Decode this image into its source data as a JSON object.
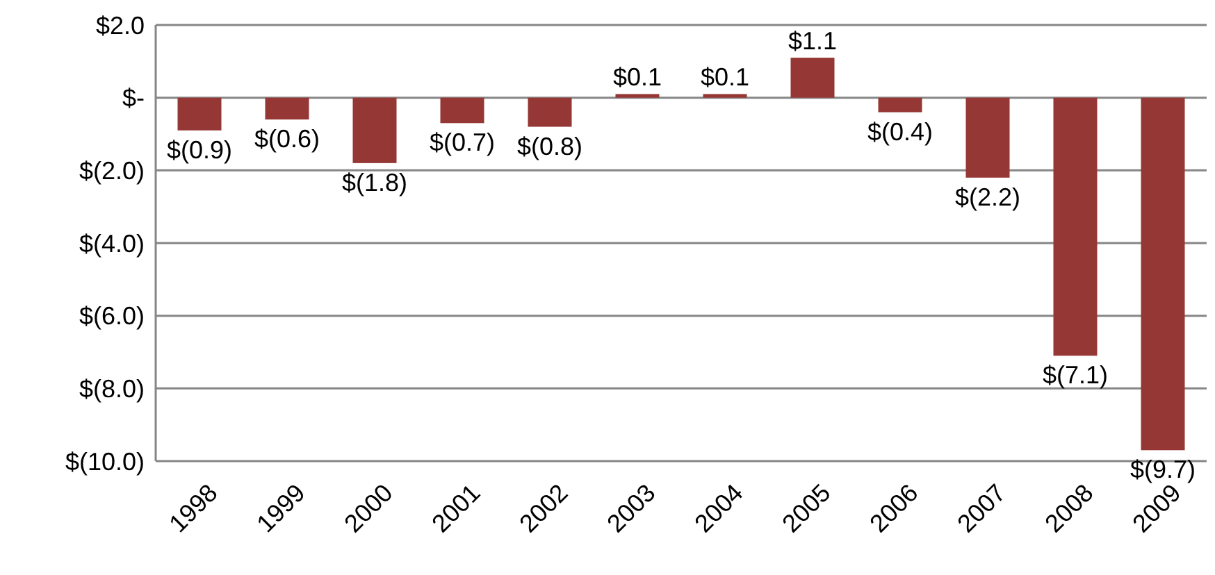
{
  "chart_data": {
    "type": "bar",
    "categories": [
      "1998",
      "1999",
      "2000",
      "2001",
      "2002",
      "2003",
      "2004",
      "2005",
      "2006",
      "2007",
      "2008",
      "2009"
    ],
    "values": [
      -0.9,
      -0.6,
      -1.8,
      -0.7,
      -0.8,
      0.1,
      0.1,
      1.1,
      -0.4,
      -2.2,
      -7.1,
      -9.7
    ],
    "value_labels": [
      "$(0.9)",
      "$(0.6)",
      "$(1.8)",
      "$(0.7)",
      "$(0.8)",
      "$0.1",
      "$0.1",
      "$1.1",
      "$(0.4)",
      "$(2.2)",
      "$(7.1)",
      "$(9.7)"
    ],
    "color": "#953735",
    "ylim": [
      -10,
      2
    ],
    "yticks": [
      {
        "value": 2,
        "label": "$2.0"
      },
      {
        "value": 0,
        "label": "$-"
      },
      {
        "value": -2,
        "label": "$(2.0)"
      },
      {
        "value": -4,
        "label": "$(4.0)"
      },
      {
        "value": -6,
        "label": "$(6.0)"
      },
      {
        "value": -8,
        "label": "$(8.0)"
      },
      {
        "value": -10,
        "label": "$(10.0)"
      }
    ],
    "grid": "y"
  }
}
